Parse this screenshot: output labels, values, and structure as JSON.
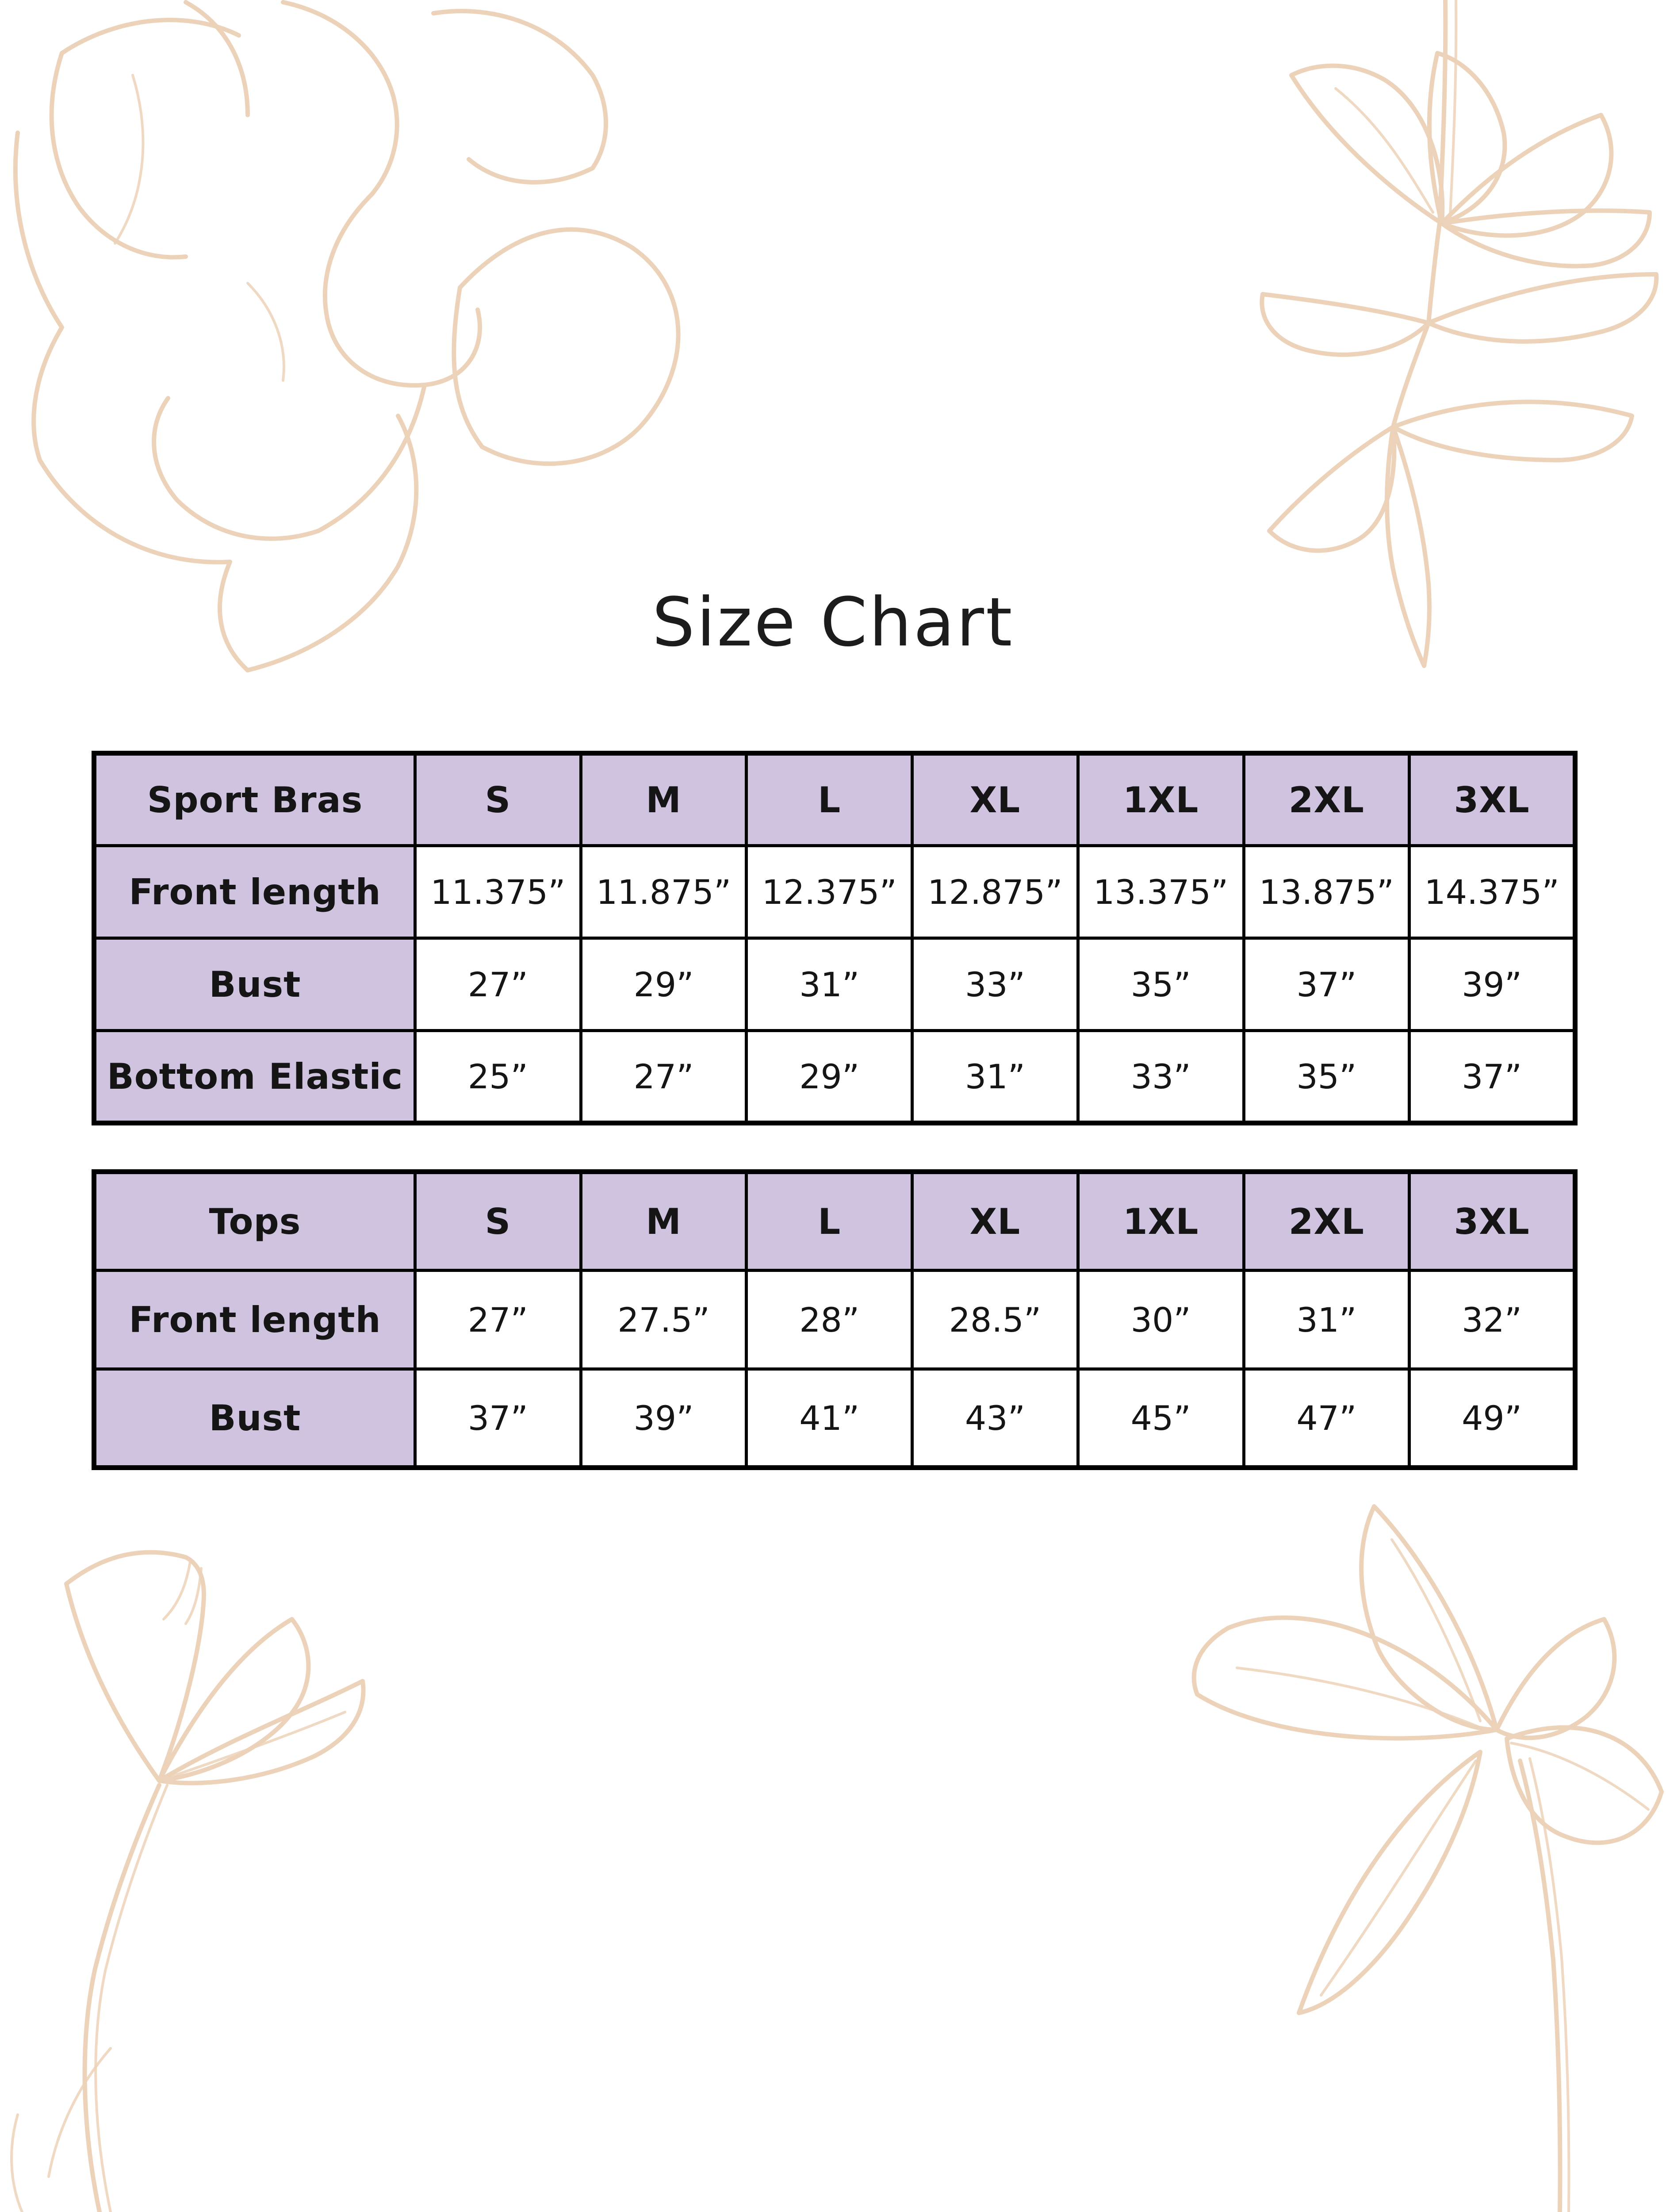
{
  "page": {
    "title": "Size Chart"
  },
  "colors": {
    "header_fill": "#cfc3df",
    "table_border": "#000000",
    "text": "#1c1c1c",
    "floral_line": "#ecd2b8",
    "background": "#ffffff"
  },
  "tables": [
    {
      "name": "sport-bras",
      "header": [
        "Sport Bras",
        "S",
        "M",
        "L",
        "XL",
        "1XL",
        "2XL",
        "3XL"
      ],
      "rows": [
        {
          "label": "Front length",
          "values": [
            "11.375”",
            "11.875”",
            "12.375”",
            "12.875”",
            "13.375”",
            "13.875”",
            "14.375”"
          ]
        },
        {
          "label": "Bust",
          "values": [
            "27”",
            "29”",
            "31”",
            "33”",
            "35”",
            "37”",
            "39”"
          ]
        },
        {
          "label": "Bottom Elastic",
          "values": [
            "25”",
            "27”",
            "29”",
            "31”",
            "33”",
            "35”",
            "37”"
          ]
        }
      ]
    },
    {
      "name": "tops",
      "header": [
        "Tops",
        "S",
        "M",
        "L",
        "XL",
        "1XL",
        "2XL",
        "3XL"
      ],
      "rows": [
        {
          "label": "Front length",
          "values": [
            "27”",
            "27.5”",
            "28”",
            "28.5”",
            "30”",
            "31”",
            "32”"
          ]
        },
        {
          "label": "Bust",
          "values": [
            "37”",
            "39”",
            "41”",
            "43”",
            "45”",
            "47”",
            "49”"
          ]
        }
      ]
    }
  ],
  "decorations": [
    "top-left-peony",
    "top-right-leaf-branch",
    "bottom-left-poppy",
    "bottom-right-flower"
  ]
}
